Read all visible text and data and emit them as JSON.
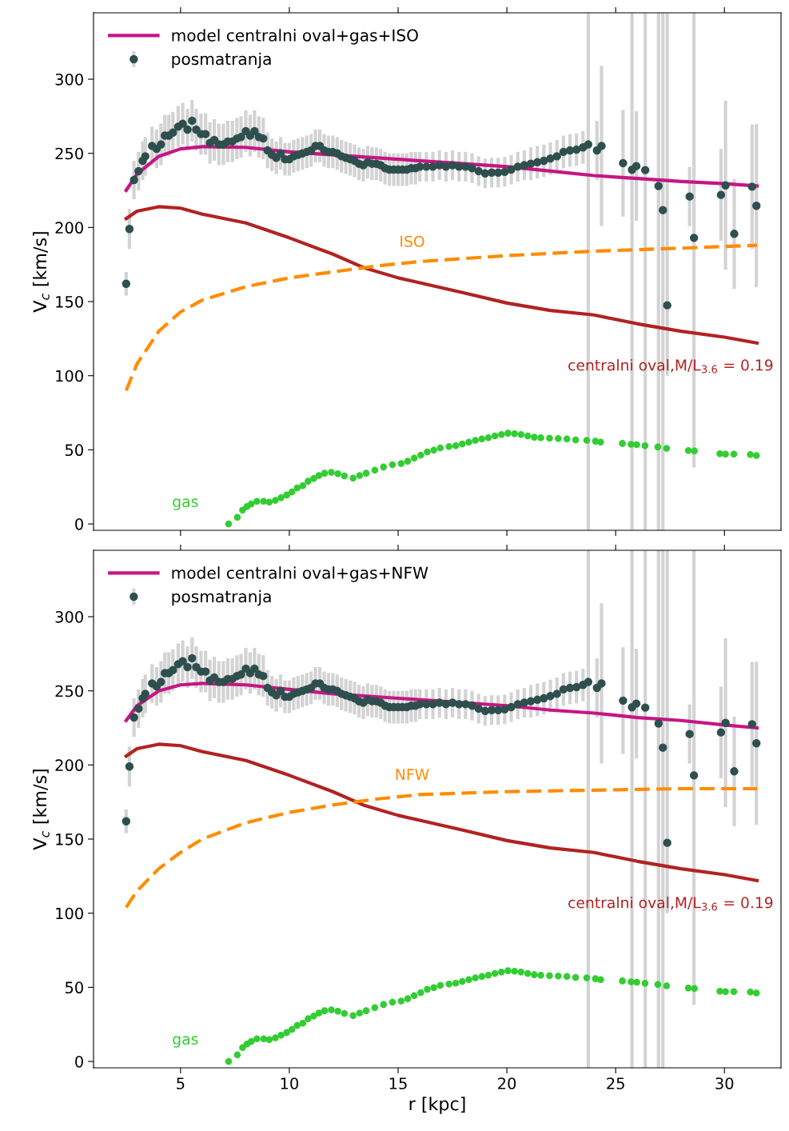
{
  "chart_data": [
    {
      "type": "line",
      "ylabel": "V$_{c}$ [km/s]",
      "xlim": [
        1.0,
        32.6
      ],
      "ylim": [
        -4.3,
        344.8
      ],
      "xticks": [
        5,
        10,
        15,
        20,
        25,
        30
      ],
      "yticks": [
        0,
        50,
        100,
        150,
        200,
        250,
        300
      ],
      "tick_labels": "y",
      "legend": "top left",
      "series": [
        {
          "name": "model centralni oval+gas+ISO",
          "type": "line",
          "color": "#c71585",
          "line_style": "solid",
          "x": [
            2.5,
            3,
            4,
            5,
            6,
            8,
            10,
            12,
            15,
            18,
            20,
            22,
            24,
            26,
            28,
            30,
            31.5
          ],
          "values": [
            225,
            236,
            248,
            253,
            254.5,
            254,
            251,
            249,
            246,
            243,
            241,
            238,
            235,
            233,
            231,
            229.5,
            228
          ]
        },
        {
          "name": "posmatranja",
          "type": "scatter",
          "color": "#2f4f4f",
          "marker": "circle",
          "x": [
            2.5,
            2.65,
            2.86,
            3.07,
            3.26,
            3.38,
            3.69,
            3.9,
            4.1,
            4.28,
            4.46,
            4.65,
            4.89,
            5.1,
            5.32,
            5.53,
            5.72,
            5.94,
            6.15,
            6.35,
            6.55,
            6.76,
            6.97,
            7.17,
            7.38,
            7.59,
            7.78,
            8.0,
            8.2,
            8.4,
            8.6,
            8.8,
            9.0,
            9.2,
            9.4,
            9.6,
            9.8,
            10.0,
            10.2,
            10.4,
            10.6,
            10.8,
            11.0,
            11.2,
            11.4,
            11.6,
            11.8,
            12.0,
            12.2,
            12.4,
            12.6,
            12.8,
            13.0,
            13.2,
            13.4,
            13.6,
            13.8,
            14.0,
            14.2,
            14.4,
            14.6,
            14.8,
            15.0,
            15.2,
            15.4,
            15.6,
            15.8,
            16.0,
            16.3,
            16.6,
            16.9,
            17.2,
            17.5,
            17.8,
            18.1,
            18.4,
            18.7,
            19.0,
            19.3,
            19.6,
            19.9,
            20.2,
            20.5,
            20.8,
            21.1,
            21.4,
            21.7,
            22.0,
            22.3,
            22.6,
            22.9,
            23.2,
            23.5,
            23.74,
            24.14,
            24.35,
            25.34,
            25.75,
            25.95,
            26.36,
            26.97,
            27.17,
            27.37,
            28.4,
            28.6,
            29.84,
            30.05,
            30.45,
            31.27,
            31.47
          ],
          "values": [
            162,
            199,
            232,
            238,
            245,
            248,
            255,
            253,
            256,
            262,
            262,
            264,
            268,
            270,
            266,
            272,
            266,
            263,
            263,
            257,
            259,
            256,
            256,
            258,
            258,
            260,
            261,
            265,
            262,
            265,
            261,
            260,
            252,
            249,
            247,
            250,
            246,
            246,
            248,
            249,
            250,
            251,
            252,
            255,
            255,
            252,
            251,
            251,
            250,
            248,
            247,
            246,
            245,
            243,
            242,
            244,
            243,
            243,
            242,
            240,
            239,
            239,
            239,
            239,
            239,
            240,
            240,
            241,
            241,
            241,
            242,
            241,
            242,
            241,
            241,
            240,
            238,
            236.5,
            237,
            237,
            237.5,
            239,
            241,
            242,
            243,
            244,
            245,
            246.5,
            248,
            251,
            252,
            252.5,
            254,
            256,
            252,
            255,
            243.4,
            238.9,
            241.4,
            238.7,
            228,
            211.7,
            147.5,
            220.9,
            193,
            222,
            228.4,
            195.7,
            227.5,
            214.6
          ],
          "errors": [
            8,
            13.5,
            13,
            13,
            13,
            13,
            13,
            13,
            14,
            14,
            14,
            14,
            14,
            14,
            14,
            14,
            14,
            14,
            14,
            14,
            14,
            14,
            14,
            14,
            14,
            14,
            14,
            14,
            14,
            14,
            14,
            14,
            12,
            11,
            11,
            11,
            11,
            11,
            11,
            11,
            11,
            11,
            11,
            11,
            11,
            11,
            11,
            11,
            11,
            11,
            11,
            11,
            11,
            11,
            11,
            11,
            11,
            11,
            11,
            11,
            11,
            11,
            11,
            11,
            11,
            11,
            11,
            10,
            10,
            10,
            10,
            10,
            10,
            10,
            10,
            10,
            10,
            10,
            10,
            10,
            10,
            10,
            10,
            10,
            11,
            11,
            11,
            11,
            11,
            11,
            11,
            11,
            11,
            [
              -4.3,
              344.8
            ],
            20,
            54,
            36,
            [
              -4.3,
              344.8
            ],
            37,
            [
              -4.3,
              344.8
            ],
            [
              -4.3,
              344.8
            ],
            [
              -4.3,
              344.8
            ],
            [
              100,
              344.8
            ],
            20,
            [
              38,
              344.8
            ],
            31,
            57,
            37,
            42,
            55
          ]
        },
        {
          "name": "centralni oval,M/L$_{3.6}$ = 0.19",
          "type": "line",
          "color": "#b22222",
          "line_style": "solid",
          "x": [
            2.5,
            3,
            4,
            5,
            6,
            8,
            10,
            12,
            13.4,
            15,
            18,
            20,
            22,
            24,
            26,
            28,
            30,
            31.5
          ],
          "values": [
            206,
            211,
            214,
            213,
            209,
            203,
            193,
            182,
            173,
            166,
            156,
            149,
            144,
            141,
            135,
            130,
            126,
            122
          ]
        },
        {
          "name": "ISO",
          "type": "line",
          "color": "#ff8c00",
          "line_style": "dashed",
          "x": [
            2.5,
            3,
            4,
            5,
            6,
            8,
            10,
            12,
            14,
            16,
            20,
            24,
            28,
            31.5
          ],
          "values": [
            90,
            108,
            130,
            143,
            151,
            160,
            166,
            170,
            174,
            177,
            181,
            184,
            186,
            188
          ]
        },
        {
          "name": "gas",
          "type": "scatter",
          "color": "#32cd32",
          "marker": "circle",
          "x": [
            7.21,
            7.61,
            7.85,
            8.05,
            8.25,
            8.51,
            8.82,
            9.08,
            9.36,
            9.62,
            9.88,
            10.12,
            10.36,
            10.62,
            10.86,
            11.12,
            11.36,
            11.62,
            11.93,
            12.23,
            12.53,
            12.93,
            13.23,
            13.53,
            13.93,
            14.33,
            14.74,
            15.14,
            15.44,
            15.74,
            16.04,
            16.34,
            16.64,
            16.94,
            17.34,
            17.65,
            17.95,
            18.25,
            18.55,
            18.85,
            19.15,
            19.45,
            19.75,
            20.05,
            20.35,
            20.65,
            20.96,
            21.26,
            21.56,
            21.96,
            22.36,
            22.76,
            23.16,
            23.67,
            24.07,
            24.31,
            25.31,
            25.71,
            25.97,
            26.35,
            26.94,
            27.34,
            28.34,
            28.62,
            29.79,
            30.05,
            30.43,
            31.19,
            31.47
          ],
          "values": [
            0,
            4.5,
            9.3,
            11.7,
            13.5,
            15.3,
            15.3,
            14.7,
            15.9,
            17.7,
            19.5,
            21.6,
            24.3,
            25.8,
            28.8,
            30.6,
            32.7,
            34.2,
            34.8,
            33.9,
            32.4,
            30.9,
            32.7,
            34.2,
            36.3,
            38.4,
            39.9,
            40.8,
            42.3,
            44.4,
            46.4,
            48.6,
            49.8,
            51.3,
            52.2,
            52.8,
            54,
            55.2,
            56.4,
            57.3,
            58.2,
            59.4,
            60.3,
            61.2,
            60.9,
            60.3,
            59.4,
            58.5,
            58.2,
            57.9,
            57.6,
            57.3,
            56.7,
            56.4,
            55.8,
            55.2,
            54.3,
            53.7,
            53.4,
            52.8,
            51.9,
            51,
            49.5,
            49.2,
            47.4,
            47.1,
            47.1,
            46.8,
            46.2
          ]
        }
      ]
    },
    {
      "type": "line",
      "xlabel": "r [kpc]",
      "ylabel": "V$_{c}$ [km/s]",
      "xlim": [
        1.0,
        32.6
      ],
      "ylim": [
        -4.3,
        344.8
      ],
      "xticks": [
        5,
        10,
        15,
        20,
        25,
        30
      ],
      "yticks": [
        0,
        50,
        100,
        150,
        200,
        250,
        300
      ],
      "legend": "top left",
      "series": [
        {
          "name": "model centralni oval+gas+NFW",
          "type": "line",
          "color": "#c71585",
          "line_style": "solid",
          "x": [
            2.5,
            3,
            4,
            5,
            6,
            8,
            10,
            12,
            15,
            18,
            20,
            22,
            24,
            26,
            28,
            30,
            31.5
          ],
          "values": [
            230,
            240,
            250,
            254,
            255,
            254,
            251,
            248,
            245,
            242,
            240,
            237,
            235,
            232,
            230,
            227,
            225
          ]
        },
        {
          "name": "posmatranja",
          "type": "scatter",
          "color": "#2f4f4f",
          "marker": "circle",
          "x": [
            2.5,
            2.65,
            2.86,
            3.07,
            3.26,
            3.38,
            3.69,
            3.9,
            4.1,
            4.28,
            4.46,
            4.65,
            4.89,
            5.1,
            5.32,
            5.53,
            5.72,
            5.94,
            6.15,
            6.35,
            6.55,
            6.76,
            6.97,
            7.17,
            7.38,
            7.59,
            7.78,
            8.0,
            8.2,
            8.4,
            8.6,
            8.8,
            9.0,
            9.2,
            9.4,
            9.6,
            9.8,
            10.0,
            10.2,
            10.4,
            10.6,
            10.8,
            11.0,
            11.2,
            11.4,
            11.6,
            11.8,
            12.0,
            12.2,
            12.4,
            12.6,
            12.8,
            13.0,
            13.2,
            13.4,
            13.6,
            13.8,
            14.0,
            14.2,
            14.4,
            14.6,
            14.8,
            15.0,
            15.2,
            15.4,
            15.6,
            15.8,
            16.0,
            16.3,
            16.6,
            16.9,
            17.2,
            17.5,
            17.8,
            18.1,
            18.4,
            18.7,
            19.0,
            19.3,
            19.6,
            19.9,
            20.2,
            20.5,
            20.8,
            21.1,
            21.4,
            21.7,
            22.0,
            22.3,
            22.6,
            22.9,
            23.2,
            23.5,
            23.74,
            24.14,
            24.35,
            25.34,
            25.75,
            25.95,
            26.36,
            26.97,
            27.17,
            27.37,
            28.4,
            28.6,
            29.84,
            30.05,
            30.45,
            31.27,
            31.47
          ],
          "values": [
            162,
            199,
            232,
            238,
            245,
            248,
            255,
            253,
            256,
            262,
            262,
            264,
            268,
            270,
            266,
            272,
            266,
            263,
            263,
            257,
            259,
            256,
            256,
            258,
            258,
            260,
            261,
            265,
            262,
            265,
            261,
            260,
            252,
            249,
            247,
            250,
            246,
            246,
            248,
            249,
            250,
            251,
            252,
            255,
            255,
            252,
            251,
            251,
            250,
            248,
            247,
            246,
            245,
            243,
            242,
            244,
            243,
            243,
            242,
            240,
            239,
            239,
            239,
            239,
            239,
            240,
            240,
            241,
            241,
            241,
            242,
            241,
            242,
            241,
            241,
            240,
            238,
            236.5,
            237,
            237,
            237.5,
            239,
            241,
            242,
            243,
            244,
            245,
            246.5,
            248,
            251,
            252,
            252.5,
            254,
            256,
            252,
            255,
            243.4,
            238.9,
            241.4,
            238.7,
            228,
            211.7,
            147.5,
            220.9,
            193,
            222,
            228.4,
            195.7,
            227.5,
            214.6
          ],
          "errors": [
            8,
            13.5,
            13,
            13,
            13,
            13,
            13,
            13,
            14,
            14,
            14,
            14,
            14,
            14,
            14,
            14,
            14,
            14,
            14,
            14,
            14,
            14,
            14,
            14,
            14,
            14,
            14,
            14,
            14,
            14,
            14,
            14,
            12,
            11,
            11,
            11,
            11,
            11,
            11,
            11,
            11,
            11,
            11,
            11,
            11,
            11,
            11,
            11,
            11,
            11,
            11,
            11,
            11,
            11,
            11,
            11,
            11,
            11,
            11,
            11,
            11,
            11,
            11,
            11,
            11,
            11,
            11,
            10,
            10,
            10,
            10,
            10,
            10,
            10,
            10,
            10,
            10,
            10,
            10,
            10,
            10,
            10,
            10,
            10,
            11,
            11,
            11,
            11,
            11,
            11,
            11,
            11,
            11,
            [
              -4.3,
              344.8
            ],
            20,
            54,
            36,
            [
              -4.3,
              344.8
            ],
            37,
            [
              -4.3,
              344.8
            ],
            [
              -4.3,
              344.8
            ],
            [
              -4.3,
              344.8
            ],
            [
              100,
              344.8
            ],
            20,
            [
              38,
              344.8
            ],
            31,
            57,
            37,
            42,
            55
          ]
        },
        {
          "name": "centralni oval,M/L$_{3.6}$ = 0.19",
          "type": "line",
          "color": "#b22222",
          "line_style": "solid",
          "x": [
            2.5,
            3,
            4,
            5,
            6,
            8,
            10,
            12,
            13.4,
            15,
            18,
            20,
            22,
            24,
            26,
            28,
            30,
            31.5
          ],
          "values": [
            206,
            211,
            214,
            213,
            209,
            203,
            193,
            182,
            173,
            166,
            156,
            149,
            144,
            141,
            135,
            130,
            126,
            122
          ]
        },
        {
          "name": "NFW",
          "type": "line",
          "color": "#ff8c00",
          "line_style": "dashed",
          "x": [
            2.5,
            3,
            4,
            5,
            6,
            8,
            10,
            12,
            14,
            16,
            20,
            24,
            28,
            31.5
          ],
          "values": [
            104,
            115,
            130,
            141,
            150,
            161,
            168,
            173,
            177,
            180,
            182,
            183,
            184,
            184
          ]
        },
        {
          "name": "gas",
          "type": "scatter",
          "color": "#32cd32",
          "marker": "circle",
          "x": [
            7.21,
            7.61,
            7.85,
            8.05,
            8.25,
            8.51,
            8.82,
            9.08,
            9.36,
            9.62,
            9.88,
            10.12,
            10.36,
            10.62,
            10.86,
            11.12,
            11.36,
            11.62,
            11.93,
            12.23,
            12.53,
            12.93,
            13.23,
            13.53,
            13.93,
            14.33,
            14.74,
            15.14,
            15.44,
            15.74,
            16.04,
            16.34,
            16.64,
            16.94,
            17.34,
            17.65,
            17.95,
            18.25,
            18.55,
            18.85,
            19.15,
            19.45,
            19.75,
            20.05,
            20.35,
            20.65,
            20.96,
            21.26,
            21.56,
            21.96,
            22.36,
            22.76,
            23.16,
            23.67,
            24.07,
            24.31,
            25.31,
            25.71,
            25.97,
            26.35,
            26.94,
            27.34,
            28.34,
            28.62,
            29.79,
            30.05,
            30.43,
            31.19,
            31.47
          ],
          "values": [
            0,
            4.5,
            9.3,
            11.7,
            13.5,
            15.3,
            15.3,
            14.7,
            15.9,
            17.7,
            19.5,
            21.6,
            24.3,
            25.8,
            28.8,
            30.6,
            32.7,
            34.2,
            34.8,
            33.9,
            32.4,
            30.9,
            32.7,
            34.2,
            36.3,
            38.4,
            39.9,
            40.8,
            42.3,
            44.4,
            46.4,
            48.6,
            49.8,
            51.3,
            52.2,
            52.8,
            54,
            55.2,
            56.4,
            57.3,
            58.2,
            59.4,
            60.3,
            61.2,
            60.9,
            60.3,
            59.4,
            58.5,
            58.2,
            57.9,
            57.6,
            57.3,
            56.7,
            56.4,
            55.8,
            55.2,
            54.3,
            53.7,
            53.4,
            52.8,
            51.9,
            51,
            49.5,
            49.2,
            47.4,
            47.1,
            47.1,
            46.8,
            46.2
          ]
        }
      ]
    }
  ]
}
